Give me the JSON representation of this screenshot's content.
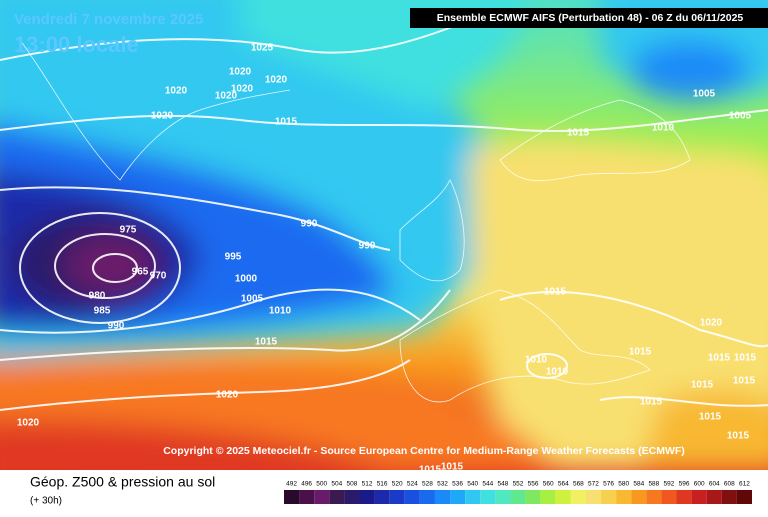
{
  "header": {
    "date": "Vendredi 7 novembre 2025",
    "time": "13:00 locale",
    "run": "Ensemble ECMWF AIFS  (Perturbation 48)  -  06 Z du 06/11/2025"
  },
  "map": {
    "isobar_labels": [
      1025,
      1020,
      1020,
      1020,
      1020,
      1020,
      1020,
      1015,
      1015,
      1010,
      1005,
      1005,
      975,
      965,
      970,
      980,
      985,
      990,
      990,
      990,
      995,
      1000,
      1005,
      1010,
      1015,
      1020,
      1020,
      1015,
      1020,
      1015,
      1010,
      1010,
      1015,
      1015,
      1015,
      1015,
      1015,
      1015,
      1015,
      1015,
      1015
    ]
  },
  "copyright": "Copyright © 2025 Meteociel.fr - Source European Centre for Medium-Range Weather Forecasts (ECMWF)",
  "footer": {
    "title": "Géop. Z500 & pression au sol",
    "lead": "(+ 30h)"
  },
  "legend": {
    "scale": [
      {
        "value": 492,
        "color": "#2a0a2a"
      },
      {
        "value": 496,
        "color": "#4a104a"
      },
      {
        "value": 500,
        "color": "#6a1a6a"
      },
      {
        "value": 504,
        "color": "#3a1a50"
      },
      {
        "value": 508,
        "color": "#2a1a6a"
      },
      {
        "value": 512,
        "color": "#1a1a8a"
      },
      {
        "value": 516,
        "color": "#1a2aaa"
      },
      {
        "value": 520,
        "color": "#1a3ac8"
      },
      {
        "value": 524,
        "color": "#1a50e0"
      },
      {
        "value": 528,
        "color": "#1a6af0"
      },
      {
        "value": 532,
        "color": "#1a8af8"
      },
      {
        "value": 536,
        "color": "#20a8f8"
      },
      {
        "value": 540,
        "color": "#30c8f0"
      },
      {
        "value": 544,
        "color": "#40e0e0"
      },
      {
        "value": 548,
        "color": "#50e8c0"
      },
      {
        "value": 552,
        "color": "#60e890"
      },
      {
        "value": 556,
        "color": "#80e860"
      },
      {
        "value": 560,
        "color": "#a8f040"
      },
      {
        "value": 564,
        "color": "#d0f040"
      },
      {
        "value": 568,
        "color": "#f0f060"
      },
      {
        "value": 572,
        "color": "#f8e070"
      },
      {
        "value": 576,
        "color": "#f8d050"
      },
      {
        "value": 580,
        "color": "#f8b830"
      },
      {
        "value": 584,
        "color": "#f89820"
      },
      {
        "value": 588,
        "color": "#f87820"
      },
      {
        "value": 592,
        "color": "#f05820"
      },
      {
        "value": 596,
        "color": "#e03820"
      },
      {
        "value": 600,
        "color": "#c82020"
      },
      {
        "value": 604,
        "color": "#a81818"
      },
      {
        "value": 608,
        "color": "#801010"
      },
      {
        "value": 612,
        "color": "#600808"
      }
    ]
  }
}
